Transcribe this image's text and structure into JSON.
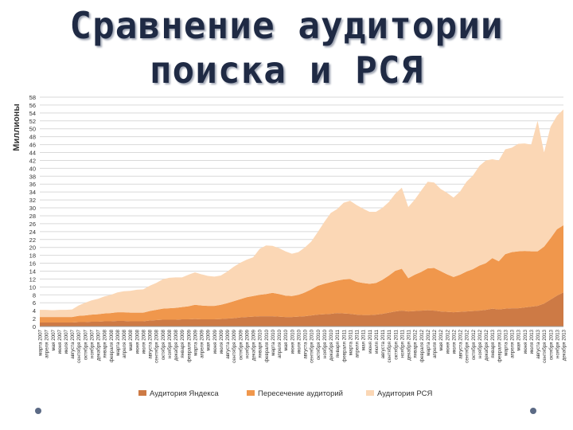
{
  "title": {
    "line1": "Сравнение аудитории",
    "line2": "поиска и РСЯ"
  },
  "chart_data": {
    "type": "area",
    "stacked": true,
    "ylabel": "Миллионы",
    "ylim": [
      0,
      58
    ],
    "ytick_step": 2,
    "grid": true,
    "legend_position": "bottom",
    "x": [
      "марта 2007",
      "апреля 2007",
      "мая 2007",
      "июня 2007",
      "июля 2007",
      "августа 2007",
      "сентября 2007",
      "октября 2007",
      "ноября 2007",
      "декабря 2007",
      "января 2008",
      "февраля 2008",
      "марта 2008",
      "апреля 2008",
      "мая 2008",
      "июня 2008",
      "июля 2008",
      "августа 2008",
      "сентября 2008",
      "октября 2008",
      "ноября 2008",
      "декабря 2008",
      "января 2009",
      "февраля 2009",
      "марта 2009",
      "апреля 2009",
      "мая 2009",
      "июня 2009",
      "июля 2009",
      "августа 2009",
      "сентября 2009",
      "октября 2009",
      "ноября 2009",
      "декабря 2009",
      "января 2010",
      "февраля 2010",
      "марта 2010",
      "апреля 2010",
      "мая 2010",
      "июня 2010",
      "июля 2010",
      "августа 2010",
      "сентября 2010",
      "октября 2010",
      "ноября 2010",
      "декабря 2010",
      "января 2011",
      "февраля 2011",
      "марта 2011",
      "апреля 2011",
      "мая 2011",
      "июня 2011",
      "июля 2011",
      "августа 2011",
      "сентября 2011",
      "октября 2011",
      "ноября 2011",
      "декабря 2011",
      "января 2012",
      "февраля 2012",
      "марта 2012",
      "апреля 2012",
      "мая 2012",
      "июня 2012",
      "июля 2012",
      "августа 2012",
      "сентября 2012",
      "октября 2012",
      "ноября 2012",
      "декабря 2012",
      "января 2013",
      "февраля 2013",
      "марта 2013",
      "апреля 2013",
      "мая 2013",
      "июня 2013",
      "июля 2013",
      "августа 2013",
      "сентября 2013",
      "октября 2013",
      "ноября 2013",
      "декабря 2013"
    ],
    "series": [
      {
        "name": "Аудитория Яндекса",
        "color": "#cd7a45",
        "values": [
          1.0,
          1.0,
          1.0,
          1.0,
          1.0,
          1.0,
          1.1,
          1.1,
          1.2,
          1.2,
          1.3,
          1.3,
          1.4,
          1.4,
          1.3,
          1.3,
          1.3,
          1.5,
          1.6,
          1.7,
          1.7,
          1.7,
          1.8,
          1.8,
          1.9,
          1.8,
          1.8,
          1.8,
          1.9,
          2.0,
          2.1,
          2.3,
          2.4,
          2.5,
          2.6,
          2.6,
          2.6,
          2.5,
          2.4,
          2.4,
          2.5,
          2.6,
          2.8,
          3.0,
          3.1,
          3.2,
          3.4,
          3.3,
          3.2,
          3.0,
          2.9,
          2.9,
          3.0,
          3.2,
          3.5,
          3.8,
          4.0,
          3.8,
          3.9,
          4.0,
          4.1,
          4.0,
          3.8,
          3.7,
          3.6,
          3.7,
          3.8,
          3.9,
          4.0,
          4.2,
          4.5,
          4.3,
          4.5,
          4.6,
          4.6,
          4.8,
          5.0,
          5.2,
          5.8,
          6.8,
          7.8,
          8.6
        ]
      },
      {
        "name": "Пересечение аудиторий",
        "color": "#f0974c",
        "values": [
          1.4,
          1.4,
          1.4,
          1.4,
          1.4,
          1.4,
          1.6,
          1.7,
          1.8,
          1.9,
          2.0,
          2.1,
          2.2,
          2.2,
          2.2,
          2.2,
          2.2,
          2.4,
          2.6,
          2.8,
          2.9,
          3.0,
          3.1,
          3.3,
          3.6,
          3.5,
          3.4,
          3.4,
          3.6,
          3.9,
          4.3,
          4.6,
          5.0,
          5.2,
          5.4,
          5.6,
          5.9,
          5.7,
          5.4,
          5.3,
          5.5,
          6.0,
          6.6,
          7.3,
          7.7,
          8.0,
          8.2,
          8.6,
          8.8,
          8.3,
          8.1,
          7.9,
          8.0,
          8.6,
          9.4,
          10.3,
          10.6,
          8.4,
          9.2,
          9.8,
          10.6,
          10.8,
          10.2,
          9.5,
          8.9,
          9.4,
          10.1,
          10.6,
          11.4,
          11.8,
          12.8,
          12.2,
          13.8,
          14.2,
          14.4,
          14.3,
          14.0,
          13.8,
          14.4,
          15.5,
          16.8,
          17.0
        ]
      },
      {
        "name": "Аудитория РСЯ",
        "color": "#fbd7b5",
        "values": [
          1.8,
          1.8,
          1.7,
          1.8,
          1.8,
          1.9,
          2.6,
          3.2,
          3.6,
          3.9,
          4.3,
          4.6,
          5.0,
          5.3,
          5.5,
          5.8,
          5.9,
          6.4,
          6.8,
          7.4,
          7.7,
          7.7,
          7.5,
          8.0,
          8.2,
          7.9,
          7.6,
          7.4,
          7.4,
          8.0,
          8.7,
          9.2,
          9.5,
          9.8,
          11.6,
          12.3,
          11.9,
          11.6,
          11.2,
          10.7,
          10.8,
          11.4,
          12.1,
          13.6,
          15.6,
          17.5,
          18.1,
          19.4,
          19.8,
          19.4,
          18.8,
          18.2,
          18.0,
          18.2,
          18.6,
          19.5,
          20.5,
          18.0,
          19.0,
          20.6,
          21.9,
          21.6,
          20.8,
          20.6,
          20.1,
          21.0,
          22.7,
          23.7,
          25.2,
          26.0,
          25.0,
          25.5,
          26.5,
          26.4,
          27.2,
          27.2,
          27.0,
          33.0,
          23.8,
          28.2,
          28.7,
          29.3
        ]
      }
    ]
  },
  "decor": {
    "dot_color": "#5b6a85"
  }
}
